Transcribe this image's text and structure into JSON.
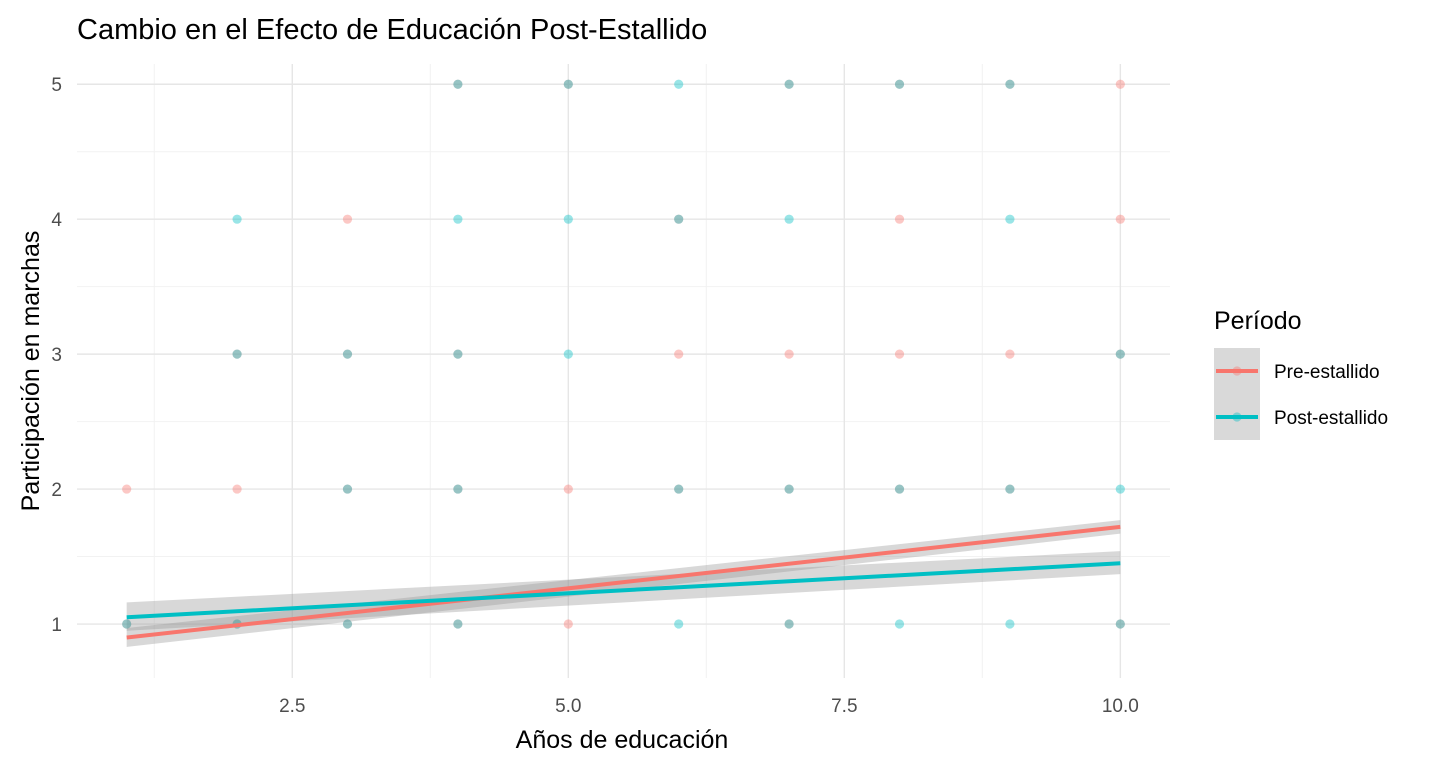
{
  "chart_data": {
    "type": "scatter",
    "title": "Cambio en el Efecto de Educación Post-Estallido",
    "xlabel": "Años de educación",
    "ylabel": "Participación en marchas",
    "xlim": [
      0.55,
      10.45
    ],
    "ylim": [
      0.6,
      5.15
    ],
    "x_ticks": [
      2.5,
      5.0,
      7.5,
      10.0
    ],
    "x_tick_labels": [
      "2.5",
      "5.0",
      "7.5",
      "10.0"
    ],
    "y_ticks": [
      1,
      2,
      3,
      4,
      5
    ],
    "y_tick_labels": [
      "1",
      "2",
      "3",
      "4",
      "5"
    ],
    "grid": true,
    "legend": {
      "title": "Período",
      "position": "right",
      "entries": [
        "Pre-estallido",
        "Post-estallido"
      ]
    },
    "series": [
      {
        "name": "Pre-estallido",
        "color": "#F8766D",
        "points": [
          [
            1,
            1
          ],
          [
            1,
            2
          ],
          [
            2,
            1
          ],
          [
            2,
            2
          ],
          [
            2,
            3
          ],
          [
            3,
            1
          ],
          [
            3,
            2
          ],
          [
            3,
            3
          ],
          [
            3,
            4
          ],
          [
            4,
            1
          ],
          [
            4,
            2
          ],
          [
            4,
            3
          ],
          [
            4,
            5
          ],
          [
            5,
            1
          ],
          [
            5,
            2
          ],
          [
            5,
            5
          ],
          [
            6,
            2
          ],
          [
            6,
            3
          ],
          [
            6,
            4
          ],
          [
            7,
            1
          ],
          [
            7,
            2
          ],
          [
            7,
            3
          ],
          [
            7,
            5
          ],
          [
            8,
            2
          ],
          [
            8,
            3
          ],
          [
            8,
            4
          ],
          [
            8,
            5
          ],
          [
            9,
            2
          ],
          [
            9,
            3
          ],
          [
            9,
            5
          ],
          [
            10,
            1
          ],
          [
            10,
            3
          ],
          [
            10,
            4
          ],
          [
            10,
            5
          ]
        ],
        "fit": {
          "x": [
            1,
            10
          ],
          "y": [
            0.9,
            1.72
          ],
          "ci_low": [
            0.83,
            1.67
          ],
          "ci_high": [
            0.97,
            1.77
          ]
        }
      },
      {
        "name": "Post-estallido",
        "color": "#00BFC4",
        "points": [
          [
            1,
            1
          ],
          [
            2,
            1
          ],
          [
            2,
            3
          ],
          [
            2,
            4
          ],
          [
            3,
            1
          ],
          [
            3,
            2
          ],
          [
            3,
            3
          ],
          [
            4,
            1
          ],
          [
            4,
            2
          ],
          [
            4,
            3
          ],
          [
            4,
            4
          ],
          [
            4,
            5
          ],
          [
            5,
            3
          ],
          [
            5,
            4
          ],
          [
            5,
            5
          ],
          [
            6,
            1
          ],
          [
            6,
            2
          ],
          [
            6,
            4
          ],
          [
            6,
            5
          ],
          [
            7,
            1
          ],
          [
            7,
            2
          ],
          [
            7,
            4
          ],
          [
            7,
            5
          ],
          [
            8,
            1
          ],
          [
            8,
            2
          ],
          [
            8,
            5
          ],
          [
            9,
            1
          ],
          [
            9,
            2
          ],
          [
            9,
            4
          ],
          [
            9,
            5
          ],
          [
            10,
            1
          ],
          [
            10,
            2
          ],
          [
            10,
            3
          ]
        ],
        "fit": {
          "x": [
            1,
            10
          ],
          "y": [
            1.05,
            1.45
          ],
          "ci_low": [
            0.95,
            1.37
          ],
          "ci_high": [
            1.16,
            1.54
          ]
        }
      }
    ]
  }
}
